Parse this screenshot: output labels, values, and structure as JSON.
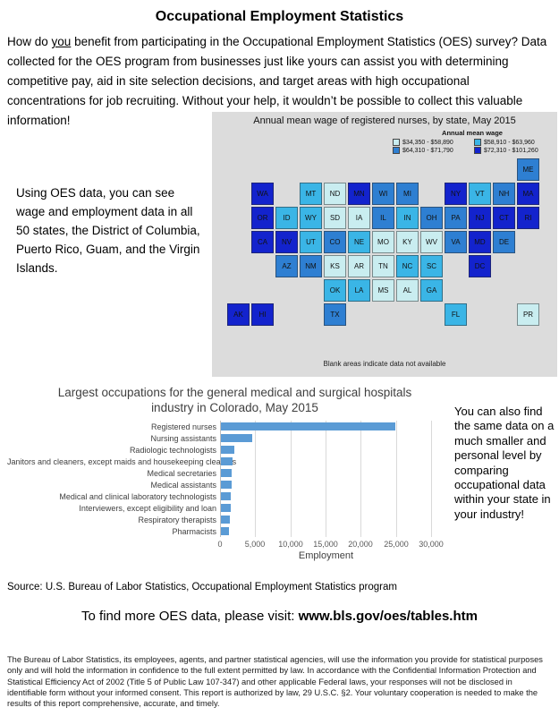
{
  "title": "Occupational Employment Statistics",
  "intro": {
    "pre": "How do ",
    "emphasis": "you",
    "post": " benefit from participating in the Occupational Employment Statistics (OES) survey? Data collected for the OES program from businesses just like yours can assist you with determining competitive pay, aid in site selection decisions, and target areas with high occupational concentrations for job recruiting. Without your help, it wouldn’t be possible to collect this valuable information!"
  },
  "map_section": {
    "side_text": "Using OES data, you can see wage and employment data in all 50 states, the District of Columbia, Puerto Rico, Guam, and the Virgin Islands.",
    "map_title": "Annual mean wage of registered nurses, by state, May 2015",
    "legend_title": "Annual mean wage",
    "note": "Blank areas indicate data not available",
    "legend": [
      {
        "label": "$34,350 - $58,890",
        "color": "#c9edf0"
      },
      {
        "label": "$58,910 - $63,960",
        "color": "#3ab5e6"
      },
      {
        "label": "$64,310 - $71,790",
        "color": "#2e7fd2"
      },
      {
        "label": "$72,310 - $101,260",
        "color": "#1323cd"
      }
    ],
    "states": [
      {
        "abbr": "ME",
        "category": 3,
        "col": 12,
        "row": 0
      },
      {
        "abbr": "WA",
        "category": 4,
        "col": 1,
        "row": 1
      },
      {
        "abbr": "MT",
        "category": 2,
        "col": 3,
        "row": 1
      },
      {
        "abbr": "ND",
        "category": 1,
        "col": 4,
        "row": 1
      },
      {
        "abbr": "MN",
        "category": 4,
        "col": 5,
        "row": 1
      },
      {
        "abbr": "WI",
        "category": 3,
        "col": 6,
        "row": 1
      },
      {
        "abbr": "MI",
        "category": 3,
        "col": 7,
        "row": 1
      },
      {
        "abbr": "NY",
        "category": 4,
        "col": 9,
        "row": 1
      },
      {
        "abbr": "VT",
        "category": 2,
        "col": 10,
        "row": 1
      },
      {
        "abbr": "NH",
        "category": 3,
        "col": 11,
        "row": 1
      },
      {
        "abbr": "MA",
        "category": 4,
        "col": 12,
        "row": 1
      },
      {
        "abbr": "OR",
        "category": 4,
        "col": 1,
        "row": 2
      },
      {
        "abbr": "ID",
        "category": 2,
        "col": 2,
        "row": 2
      },
      {
        "abbr": "WY",
        "category": 2,
        "col": 3,
        "row": 2
      },
      {
        "abbr": "SD",
        "category": 1,
        "col": 4,
        "row": 2
      },
      {
        "abbr": "IA",
        "category": 1,
        "col": 5,
        "row": 2
      },
      {
        "abbr": "IL",
        "category": 3,
        "col": 6,
        "row": 2
      },
      {
        "abbr": "IN",
        "category": 2,
        "col": 7,
        "row": 2
      },
      {
        "abbr": "OH",
        "category": 3,
        "col": 8,
        "row": 2
      },
      {
        "abbr": "PA",
        "category": 3,
        "col": 9,
        "row": 2
      },
      {
        "abbr": "NJ",
        "category": 4,
        "col": 10,
        "row": 2
      },
      {
        "abbr": "CT",
        "category": 4,
        "col": 11,
        "row": 2
      },
      {
        "abbr": "RI",
        "category": 4,
        "col": 12,
        "row": 2
      },
      {
        "abbr": "CA",
        "category": 4,
        "col": 1,
        "row": 3
      },
      {
        "abbr": "NV",
        "category": 4,
        "col": 2,
        "row": 3
      },
      {
        "abbr": "UT",
        "category": 2,
        "col": 3,
        "row": 3
      },
      {
        "abbr": "CO",
        "category": 3,
        "col": 4,
        "row": 3
      },
      {
        "abbr": "NE",
        "category": 2,
        "col": 5,
        "row": 3
      },
      {
        "abbr": "MO",
        "category": 1,
        "col": 6,
        "row": 3
      },
      {
        "abbr": "KY",
        "category": 1,
        "col": 7,
        "row": 3
      },
      {
        "abbr": "WV",
        "category": 1,
        "col": 8,
        "row": 3
      },
      {
        "abbr": "VA",
        "category": 3,
        "col": 9,
        "row": 3
      },
      {
        "abbr": "MD",
        "category": 4,
        "col": 10,
        "row": 3
      },
      {
        "abbr": "DE",
        "category": 3,
        "col": 11,
        "row": 3
      },
      {
        "abbr": "AZ",
        "category": 3,
        "col": 2,
        "row": 4
      },
      {
        "abbr": "NM",
        "category": 3,
        "col": 3,
        "row": 4
      },
      {
        "abbr": "KS",
        "category": 1,
        "col": 4,
        "row": 4
      },
      {
        "abbr": "AR",
        "category": 1,
        "col": 5,
        "row": 4
      },
      {
        "abbr": "TN",
        "category": 1,
        "col": 6,
        "row": 4
      },
      {
        "abbr": "NC",
        "category": 2,
        "col": 7,
        "row": 4
      },
      {
        "abbr": "SC",
        "category": 2,
        "col": 8,
        "row": 4
      },
      {
        "abbr": "DC",
        "category": 4,
        "col": 10,
        "row": 4
      },
      {
        "abbr": "OK",
        "category": 2,
        "col": 4,
        "row": 5
      },
      {
        "abbr": "LA",
        "category": 2,
        "col": 5,
        "row": 5
      },
      {
        "abbr": "MS",
        "category": 1,
        "col": 6,
        "row": 5
      },
      {
        "abbr": "AL",
        "category": 1,
        "col": 7,
        "row": 5
      },
      {
        "abbr": "GA",
        "category": 2,
        "col": 8,
        "row": 5
      },
      {
        "abbr": "AK",
        "category": 4,
        "col": 0,
        "row": 6
      },
      {
        "abbr": "HI",
        "category": 4,
        "col": 1,
        "row": 6
      },
      {
        "abbr": "TX",
        "category": 3,
        "col": 4,
        "row": 6
      },
      {
        "abbr": "FL",
        "category": 2,
        "col": 9,
        "row": 6
      },
      {
        "abbr": "PR",
        "category": 1,
        "col": 12,
        "row": 6
      }
    ]
  },
  "chart_data": {
    "type": "bar",
    "orientation": "horizontal",
    "title": "Largest occupations for the general medical and surgical hospitals industry in Colorado, May 2015",
    "categories": [
      "Registered nurses",
      "Nursing assistants",
      "Radiologic technologists",
      "Janitors and cleaners, except maids and housekeeping cleaners",
      "Medical secretaries",
      "Medical assistants",
      "Medical and clinical laboratory technologists",
      "Interviewers, except eligibility and loan",
      "Respiratory therapists",
      "Pharmacists"
    ],
    "values": [
      24800,
      4400,
      1900,
      1650,
      1550,
      1500,
      1400,
      1350,
      1250,
      1200
    ],
    "xlabel": "Employment",
    "xlim": [
      0,
      30000
    ],
    "xticks": [
      0,
      5000,
      10000,
      15000,
      20000,
      25000,
      30000
    ],
    "xtick_labels": [
      "0",
      "5,000",
      "10,000",
      "15,000",
      "20,000",
      "25,000",
      "30,000"
    ],
    "bar_color": "#5b9bd5",
    "grid": "vertical gridlines only",
    "legend_position": "none"
  },
  "chart_section": {
    "side_text": "You can also find the same data on a much smaller and personal level by comparing occupational data within your state in your industry!",
    "source": "Source: U.S. Bureau of Labor Statistics, Occupational Employment Statistics program"
  },
  "footer": {
    "cta_prefix": "To find more OES data, please visit: ",
    "cta_url": "www.bls.gov/oes/tables.htm",
    "legal": "The Bureau of Labor Statistics, its employees, agents, and partner statistical agencies, will use the information you provide for statistical purposes only and will hold the information in confidence to the full extent permitted by law. In accordance with the Confidential Information Protection and Statistical Efficiency Act of 2002 (Title 5 of Public Law 107-347) and other applicable Federal laws, your responses will not be disclosed in identifiable form without your informed consent. This report is authorized by law, 29 U.S.C. §2. Your voluntary cooperation is needed to make the results of this report comprehensive, accurate, and timely."
  }
}
